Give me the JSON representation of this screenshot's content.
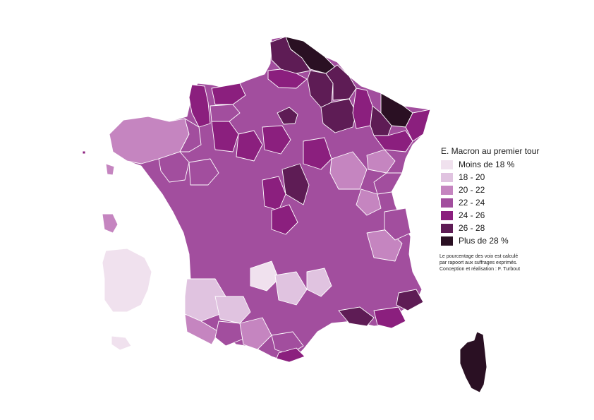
{
  "legend": {
    "title": "E. Macron au premier tour",
    "classes": [
      {
        "label": "Moins de 18 %",
        "color": "#f0e1ee"
      },
      {
        "label": "18 - 20",
        "color": "#e0c3e0"
      },
      {
        "label": "20 - 22",
        "color": "#c585c0"
      },
      {
        "label": "22 - 24",
        "color": "#a24e9e"
      },
      {
        "label": "24 - 26",
        "color": "#8b1f7e"
      },
      {
        "label": "26 - 28",
        "color": "#5e1c55"
      },
      {
        "label": "Plus de 28 %",
        "color": "#2a1023"
      }
    ]
  },
  "note": {
    "line1": "Le pourcentage des voix est calculé",
    "line2": "par rapoort aux suffrages exprimés.",
    "line3": "Conception et réalisation : F. Turbout"
  }
}
